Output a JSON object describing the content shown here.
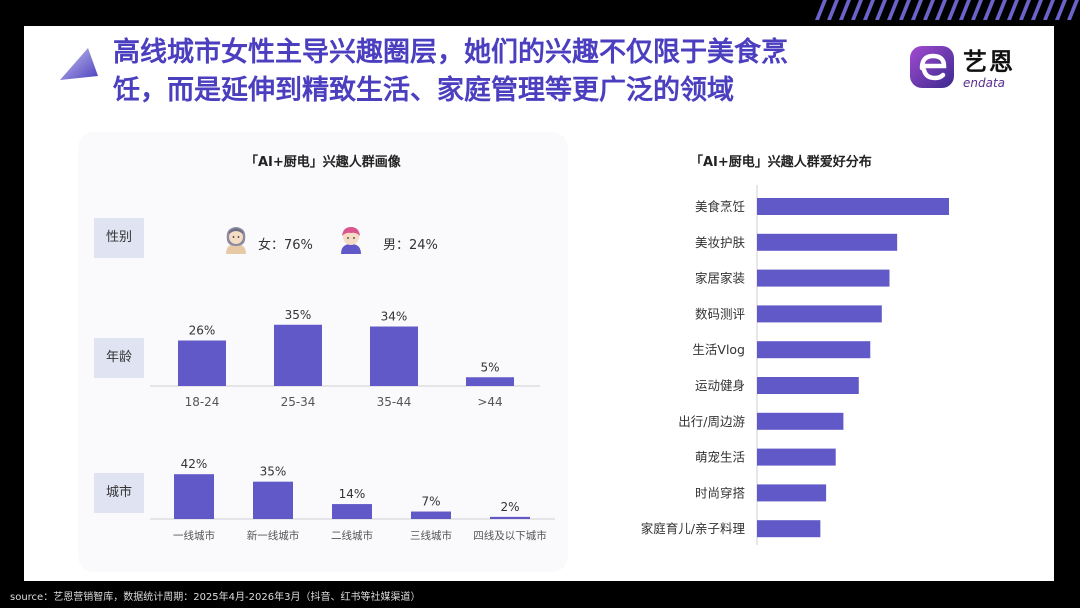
{
  "title": "高线城市女性主导兴趣圈层，她们的兴趣不仅限于美食烹饪，而是延伸到精致生活、家庭管理等更广泛的领域",
  "logo": {
    "cn": "艺恩",
    "en": "endata"
  },
  "left_panel": {
    "heading": "「AI+厨电」兴趣人群画像",
    "row_labels": {
      "gender": "性别",
      "age": "年龄",
      "city": "城市"
    },
    "gender": {
      "female": "女：76%",
      "male": "男：24%"
    }
  },
  "right_panel": {
    "heading": "「AI+厨电」兴趣人群爱好分布"
  },
  "source": "source：艺恩营销智库，数据统计周期：2025年4月-2026年3月（抖音、红书等社媒渠道）",
  "colors": {
    "bar": "#6159c8",
    "title": "#4b3fc0",
    "label_bg": "#dfe3f2"
  },
  "chart_data": [
    {
      "type": "bar",
      "title": "",
      "categories": [
        "18-24",
        "25-34",
        "35-44",
        ">44"
      ],
      "values": [
        26,
        35,
        34,
        5
      ],
      "labels": [
        "26%",
        "35%",
        "34%",
        "5%"
      ],
      "ylim": [
        0,
        40
      ]
    },
    {
      "type": "bar",
      "title": "",
      "categories": [
        "一线城市",
        "新一线城市",
        "二线城市",
        "三线城市",
        "四线及以下城市"
      ],
      "values": [
        42,
        35,
        14,
        7,
        2
      ],
      "labels": [
        "42%",
        "35%",
        "14%",
        "7%",
        "2%"
      ],
      "ylim": [
        0,
        45
      ]
    },
    {
      "type": "bar",
      "orientation": "horizontal",
      "title": "「AI+厨电」兴趣人群爱好分布",
      "categories": [
        "美食烹饪",
        "美妆护肤",
        "家居家装",
        "数码测评",
        "生活Vlog",
        "运动健身",
        "出行/周边游",
        "萌宠生活",
        "时尚穿搭",
        "家庭育儿/亲子料理"
      ],
      "values": [
        100,
        73,
        69,
        65,
        59,
        53,
        45,
        41,
        36,
        33
      ],
      "xlim": [
        0,
        100
      ]
    }
  ]
}
